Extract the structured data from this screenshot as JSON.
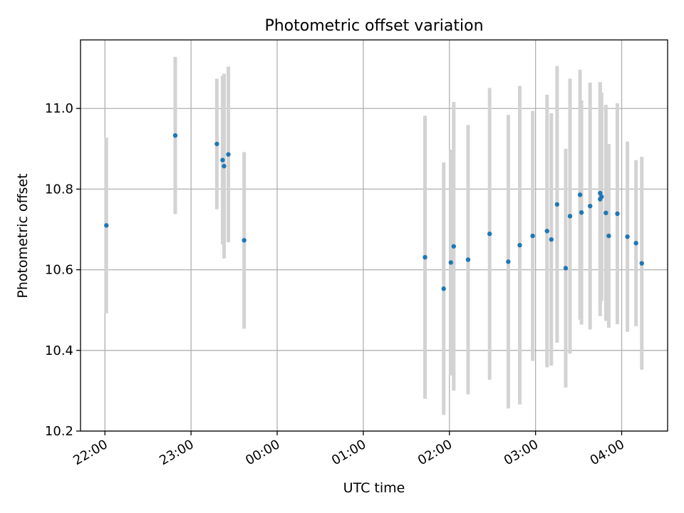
{
  "chart_data": {
    "type": "scatter",
    "title": "Photometric offset variation",
    "xlabel": "UTC time",
    "ylabel": "Photometric offset",
    "x_axis_kind": "time (hours)",
    "xlim": [
      "21:43",
      "04:32"
    ],
    "ylim": [
      10.2,
      11.17
    ],
    "x_ticks": [
      "22:00",
      "23:00",
      "00:00",
      "01:00",
      "02:00",
      "03:00",
      "04:00"
    ],
    "y_ticks": [
      10.2,
      10.4,
      10.6,
      10.8,
      11.0
    ],
    "grid": true,
    "legend": "none",
    "colors": {
      "point": "#1f77b4",
      "errorbar": "#d3d3d3",
      "grid": "#b0b0b0"
    },
    "points": [
      {
        "x": "22:01",
        "y": 10.71,
        "err": 0.218
      },
      {
        "x": "22:49",
        "y": 10.933,
        "err": 0.195
      },
      {
        "x": "23:18",
        "y": 10.912,
        "err": 0.162
      },
      {
        "x": "23:22",
        "y": 10.872,
        "err": 0.209
      },
      {
        "x": "23:23",
        "y": 10.857,
        "err": 0.229
      },
      {
        "x": "23:26",
        "y": 10.886,
        "err": 0.218
      },
      {
        "x": "23:37",
        "y": 10.673,
        "err": 0.219
      },
      {
        "x": "01:43",
        "y": 10.631,
        "err": 0.351
      },
      {
        "x": "01:56",
        "y": 10.553,
        "err": 0.313
      },
      {
        "x": "02:01",
        "y": 10.618,
        "err": 0.28
      },
      {
        "x": "02:03",
        "y": 10.658,
        "err": 0.358
      },
      {
        "x": "02:13",
        "y": 10.625,
        "err": 0.334
      },
      {
        "x": "02:28",
        "y": 10.689,
        "err": 0.362
      },
      {
        "x": "02:41",
        "y": 10.62,
        "err": 0.364
      },
      {
        "x": "02:49",
        "y": 10.661,
        "err": 0.395
      },
      {
        "x": "02:58",
        "y": 10.684,
        "err": 0.31
      },
      {
        "x": "03:08",
        "y": 10.696,
        "err": 0.338
      },
      {
        "x": "03:11",
        "y": 10.675,
        "err": 0.313
      },
      {
        "x": "03:15",
        "y": 10.762,
        "err": 0.343
      },
      {
        "x": "03:21",
        "y": 10.604,
        "err": 0.296
      },
      {
        "x": "03:24",
        "y": 10.733,
        "err": 0.341
      },
      {
        "x": "03:31",
        "y": 10.786,
        "err": 0.31
      },
      {
        "x": "03:32",
        "y": 10.742,
        "err": 0.278
      },
      {
        "x": "03:38",
        "y": 10.758,
        "err": 0.306
      },
      {
        "x": "03:45",
        "y": 10.775,
        "err": 0.29
      },
      {
        "x": "03:45",
        "y": 10.79,
        "err": 0.275
      },
      {
        "x": "03:46",
        "y": 10.781,
        "err": 0.258
      },
      {
        "x": "03:49",
        "y": 10.741,
        "err": 0.268
      },
      {
        "x": "03:51",
        "y": 10.684,
        "err": 0.228
      },
      {
        "x": "03:57",
        "y": 10.739,
        "err": 0.274
      },
      {
        "x": "04:04",
        "y": 10.682,
        "err": 0.236
      },
      {
        "x": "04:10",
        "y": 10.666,
        "err": 0.206
      },
      {
        "x": "04:14",
        "y": 10.616,
        "err": 0.264
      }
    ]
  }
}
